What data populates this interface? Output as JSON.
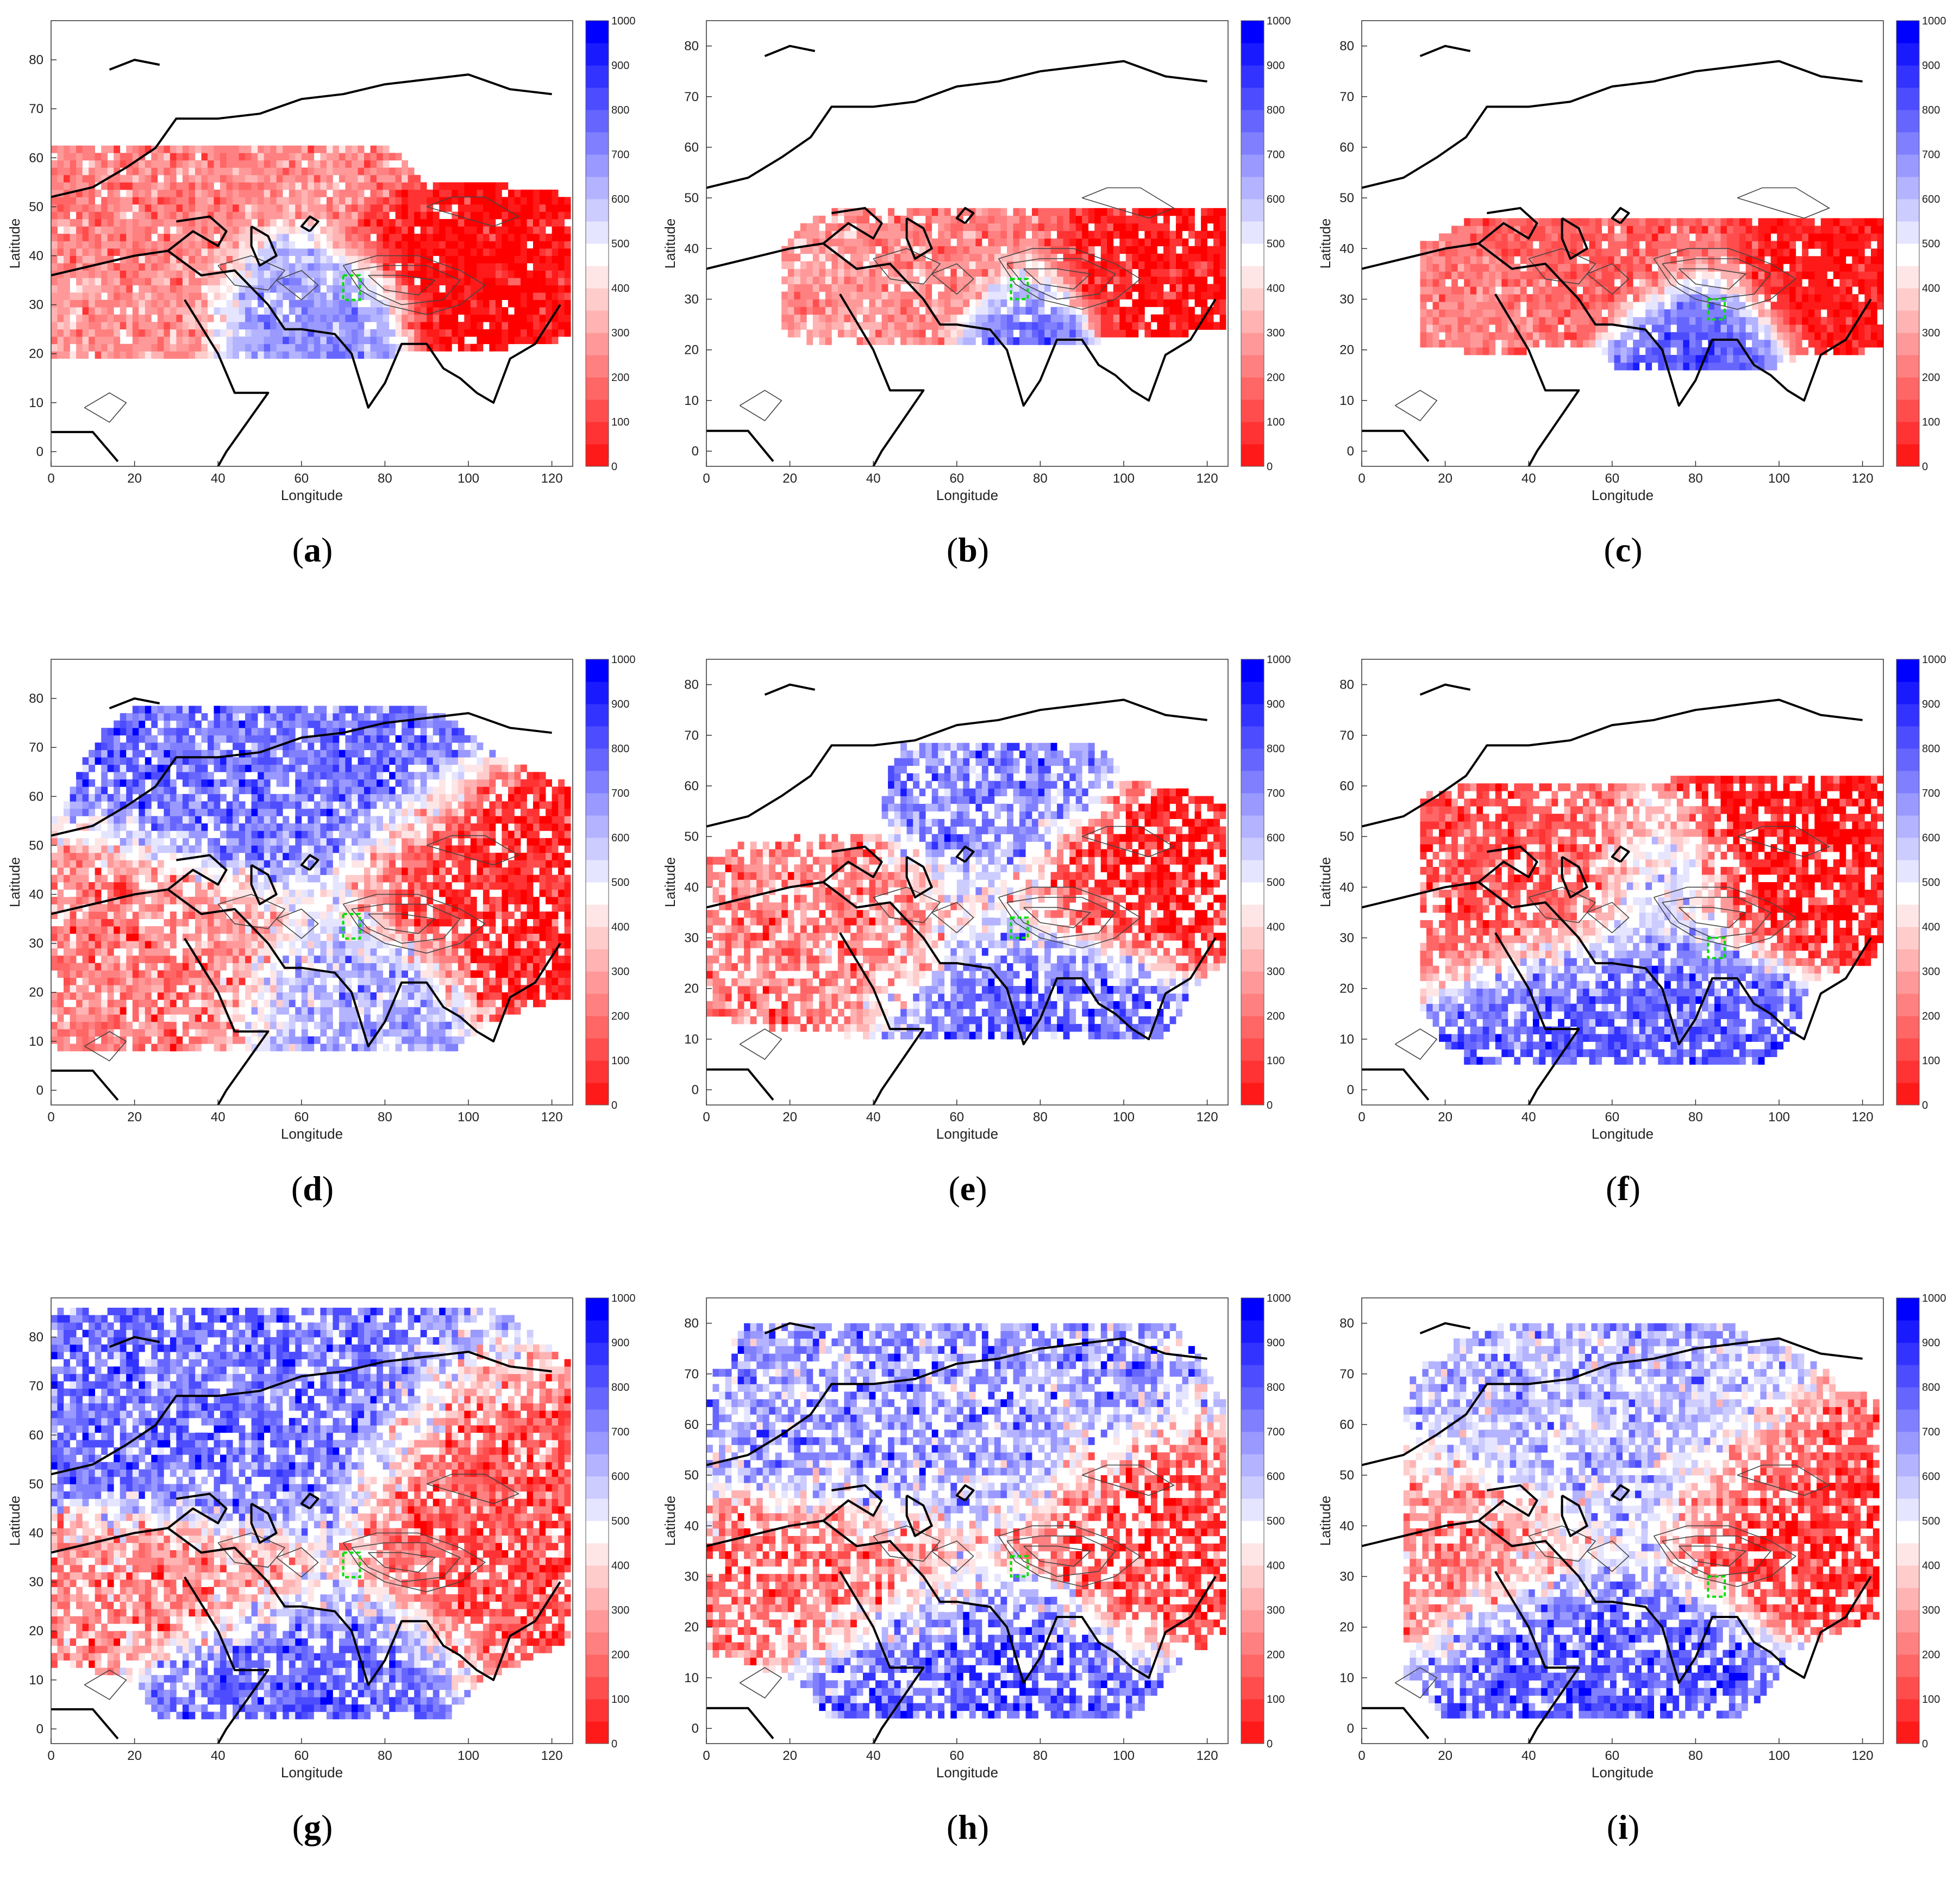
{
  "figure": {
    "axis_labels": {
      "x": "Longitude",
      "y": "Latitude"
    },
    "colors": {
      "low": "#ff0000",
      "mid": "#ffffff",
      "high": "#0000ff",
      "coastline": "#000000",
      "contour": "#444444",
      "box": "#00e000"
    }
  },
  "chart_data": [
    {
      "id": "a",
      "caption": "a",
      "type": "heatmap",
      "xlabel": "Longitude",
      "ylabel": "Latitude",
      "xlim": [
        0,
        125
      ],
      "ylim": [
        -3,
        88
      ],
      "xticks": [
        0,
        20,
        40,
        60,
        80,
        100,
        120
      ],
      "yticks": [
        0,
        10,
        20,
        30,
        40,
        50,
        60,
        70,
        80
      ],
      "colorbar": {
        "min": 0,
        "max": 1000,
        "ticks": [
          0,
          100,
          200,
          300,
          400,
          500,
          600,
          700,
          800,
          900,
          1000
        ]
      },
      "box": {
        "lon": [
          70,
          74
        ],
        "lat": [
          31,
          36
        ]
      },
      "features": [
        {
          "lon": 20,
          "lat": 45,
          "sx": 18,
          "sy": 8,
          "value": 250
        },
        {
          "lon": 10,
          "lat": 30,
          "sx": 14,
          "sy": 7,
          "value": 300
        },
        {
          "lon": 55,
          "lat": 32,
          "sx": 8,
          "sy": 7,
          "value": 700
        },
        {
          "lon": 72,
          "lat": 30,
          "sx": 6,
          "sy": 5,
          "value": 750
        },
        {
          "lon": 100,
          "lat": 37,
          "sx": 16,
          "sy": 6,
          "value": 20
        },
        {
          "lon": 40,
          "lat": 55,
          "sx": 16,
          "sy": 5,
          "value": 280
        }
      ],
      "extent": {
        "lon": [
          0,
          124
        ],
        "lat": [
          19,
          62
        ]
      },
      "noise": 0.18,
      "density": 0.95
    },
    {
      "id": "b",
      "caption": "b",
      "type": "heatmap",
      "xlabel": "Longitude",
      "ylabel": "Latitude",
      "xlim": [
        0,
        125
      ],
      "ylim": [
        -3,
        85
      ],
      "xticks": [
        0,
        20,
        40,
        60,
        80,
        100,
        120
      ],
      "yticks": [
        0,
        10,
        20,
        30,
        40,
        50,
        60,
        70,
        80
      ],
      "colorbar": {
        "min": 0,
        "max": 1000,
        "ticks": [
          0,
          100,
          200,
          300,
          400,
          500,
          600,
          700,
          800,
          900,
          1000
        ]
      },
      "box": {
        "lon": [
          73,
          77
        ],
        "lat": [
          30,
          34
        ]
      },
      "features": [
        {
          "lon": 60,
          "lat": 40,
          "sx": 12,
          "sy": 6,
          "value": 250
        },
        {
          "lon": 76,
          "lat": 26,
          "sx": 6,
          "sy": 6,
          "value": 780
        },
        {
          "lon": 105,
          "lat": 36,
          "sx": 14,
          "sy": 5,
          "value": 40
        },
        {
          "lon": 40,
          "lat": 32,
          "sx": 10,
          "sy": 5,
          "value": 300
        }
      ],
      "extent": {
        "lon": [
          18,
          124
        ],
        "lat": [
          21,
          48
        ]
      },
      "noise": 0.18,
      "density": 0.9
    },
    {
      "id": "c",
      "caption": "c",
      "type": "heatmap",
      "xlabel": "Longitude",
      "ylabel": "Latitude",
      "xlim": [
        0,
        125
      ],
      "ylim": [
        -3,
        85
      ],
      "xticks": [
        0,
        20,
        40,
        60,
        80,
        100,
        120
      ],
      "yticks": [
        0,
        10,
        20,
        30,
        40,
        50,
        60,
        70,
        80
      ],
      "colorbar": {
        "min": 0,
        "max": 1000,
        "ticks": [
          0,
          100,
          200,
          300,
          400,
          500,
          600,
          700,
          800,
          900,
          1000
        ]
      },
      "box": {
        "lon": [
          83,
          87
        ],
        "lat": [
          26,
          30
        ]
      },
      "features": [
        {
          "lon": 80,
          "lat": 24,
          "sx": 8,
          "sy": 6,
          "value": 820
        },
        {
          "lon": 60,
          "lat": 38,
          "sx": 14,
          "sy": 6,
          "value": 180
        },
        {
          "lon": 110,
          "lat": 35,
          "sx": 12,
          "sy": 6,
          "value": 40
        },
        {
          "lon": 30,
          "lat": 30,
          "sx": 12,
          "sy": 4,
          "value": 250
        }
      ],
      "extent": {
        "lon": [
          14,
          124
        ],
        "lat": [
          16,
          46
        ]
      },
      "noise": 0.15,
      "density": 0.95
    },
    {
      "id": "d",
      "caption": "d",
      "type": "heatmap",
      "xlabel": "Longitude",
      "ylabel": "Latitude",
      "xlim": [
        0,
        125
      ],
      "ylim": [
        -3,
        88
      ],
      "xticks": [
        0,
        20,
        40,
        60,
        80,
        100,
        120
      ],
      "yticks": [
        0,
        10,
        20,
        30,
        40,
        50,
        60,
        70,
        80
      ],
      "colorbar": {
        "min": 0,
        "max": 1000,
        "ticks": [
          0,
          100,
          200,
          300,
          400,
          500,
          600,
          700,
          800,
          900,
          1000
        ]
      },
      "box": {
        "lon": [
          70,
          74
        ],
        "lat": [
          31,
          36
        ]
      },
      "features": [
        {
          "lon": 55,
          "lat": 58,
          "sx": 18,
          "sy": 10,
          "value": 780
        },
        {
          "lon": 25,
          "lat": 30,
          "sx": 20,
          "sy": 9,
          "value": 250
        },
        {
          "lon": 100,
          "lat": 40,
          "sx": 16,
          "sy": 9,
          "value": 60
        },
        {
          "lon": 70,
          "lat": 22,
          "sx": 12,
          "sy": 8,
          "value": 700
        }
      ],
      "extent": {
        "lon": [
          0,
          124
        ],
        "lat": [
          8,
          78
        ]
      },
      "noise": 0.25,
      "density": 0.85
    },
    {
      "id": "e",
      "caption": "e",
      "type": "heatmap",
      "xlabel": "Longitude",
      "ylabel": "Latitude",
      "xlim": [
        0,
        125
      ],
      "ylim": [
        -3,
        85
      ],
      "xticks": [
        0,
        20,
        40,
        60,
        80,
        100,
        120
      ],
      "yticks": [
        0,
        10,
        20,
        30,
        40,
        50,
        60,
        70,
        80
      ],
      "colorbar": {
        "min": 0,
        "max": 1000,
        "ticks": [
          0,
          100,
          200,
          300,
          400,
          500,
          600,
          700,
          800,
          900,
          1000
        ]
      },
      "box": {
        "lon": [
          73,
          77
        ],
        "lat": [
          30,
          34
        ]
      },
      "features": [
        {
          "lon": 70,
          "lat": 55,
          "sx": 10,
          "sy": 9,
          "value": 750
        },
        {
          "lon": 75,
          "lat": 20,
          "sx": 14,
          "sy": 7,
          "value": 800
        },
        {
          "lon": 30,
          "lat": 30,
          "sx": 18,
          "sy": 7,
          "value": 250
        },
        {
          "lon": 100,
          "lat": 40,
          "sx": 14,
          "sy": 7,
          "value": 60
        }
      ],
      "extent": {
        "lon": [
          0,
          124
        ],
        "lat": [
          10,
          68
        ]
      },
      "noise": 0.28,
      "density": 0.75
    },
    {
      "id": "f",
      "caption": "f",
      "type": "heatmap",
      "xlabel": "Longitude",
      "ylabel": "Latitude",
      "xlim": [
        0,
        125
      ],
      "ylim": [
        -3,
        85
      ],
      "xticks": [
        0,
        20,
        40,
        60,
        80,
        100,
        120
      ],
      "yticks": [
        0,
        10,
        20,
        30,
        40,
        50,
        60,
        70,
        80
      ],
      "colorbar": {
        "min": 0,
        "max": 1000,
        "ticks": [
          0,
          100,
          200,
          300,
          400,
          500,
          600,
          700,
          800,
          900,
          1000
        ]
      },
      "box": {
        "lon": [
          83,
          87
        ],
        "lat": [
          26,
          30
        ]
      },
      "features": [
        {
          "lon": 60,
          "lat": 18,
          "sx": 16,
          "sy": 8,
          "value": 820
        },
        {
          "lon": 70,
          "lat": 38,
          "sx": 8,
          "sy": 7,
          "value": 650
        },
        {
          "lon": 40,
          "lat": 38,
          "sx": 18,
          "sy": 8,
          "value": 150
        },
        {
          "lon": 105,
          "lat": 45,
          "sx": 14,
          "sy": 8,
          "value": 50
        }
      ],
      "extent": {
        "lon": [
          14,
          124
        ],
        "lat": [
          5,
          62
        ]
      },
      "noise": 0.22,
      "density": 0.8
    },
    {
      "id": "g",
      "caption": "g",
      "type": "heatmap",
      "xlabel": "Longitude",
      "ylabel": "Latitude",
      "xlim": [
        0,
        125
      ],
      "ylim": [
        -3,
        88
      ],
      "xticks": [
        0,
        20,
        40,
        60,
        80,
        100,
        120
      ],
      "yticks": [
        0,
        10,
        20,
        30,
        40,
        50,
        60,
        70,
        80
      ],
      "colorbar": {
        "min": 0,
        "max": 1000,
        "ticks": [
          0,
          100,
          200,
          300,
          400,
          500,
          600,
          700,
          800,
          900,
          1000
        ]
      },
      "box": {
        "lon": [
          70,
          74
        ],
        "lat": [
          31,
          36
        ]
      },
      "features": [
        {
          "lon": 45,
          "lat": 65,
          "sx": 25,
          "sy": 14,
          "value": 780
        },
        {
          "lon": 25,
          "lat": 30,
          "sx": 20,
          "sy": 7,
          "value": 250
        },
        {
          "lon": 100,
          "lat": 45,
          "sx": 14,
          "sy": 12,
          "value": 150
        },
        {
          "lon": 60,
          "lat": 12,
          "sx": 14,
          "sy": 8,
          "value": 800
        }
      ],
      "extent": {
        "lon": [
          0,
          124
        ],
        "lat": [
          2,
          86
        ]
      },
      "noise": 0.3,
      "density": 0.85
    },
    {
      "id": "h",
      "caption": "h",
      "type": "heatmap",
      "xlabel": "Longitude",
      "ylabel": "Latitude",
      "xlim": [
        0,
        125
      ],
      "ylim": [
        -3,
        85
      ],
      "xticks": [
        0,
        20,
        40,
        60,
        80,
        100,
        120
      ],
      "yticks": [
        0,
        10,
        20,
        30,
        40,
        50,
        60,
        70,
        80
      ],
      "colorbar": {
        "min": 0,
        "max": 1000,
        "ticks": [
          0,
          100,
          200,
          300,
          400,
          500,
          600,
          700,
          800,
          900,
          1000
        ]
      },
      "box": {
        "lon": [
          73,
          77
        ],
        "lat": [
          30,
          34
        ]
      },
      "features": [
        {
          "lon": 60,
          "lat": 60,
          "sx": 22,
          "sy": 12,
          "value": 700
        },
        {
          "lon": 65,
          "lat": 15,
          "sx": 16,
          "sy": 8,
          "value": 820
        },
        {
          "lon": 30,
          "lat": 30,
          "sx": 18,
          "sy": 7,
          "value": 200
        },
        {
          "lon": 100,
          "lat": 38,
          "sx": 14,
          "sy": 9,
          "value": 100
        }
      ],
      "extent": {
        "lon": [
          0,
          124
        ],
        "lat": [
          2,
          80
        ]
      },
      "noise": 0.32,
      "density": 0.72
    },
    {
      "id": "i",
      "caption": "i",
      "type": "heatmap",
      "xlabel": "Longitude",
      "ylabel": "Latitude",
      "xlim": [
        0,
        125
      ],
      "ylim": [
        -3,
        85
      ],
      "xticks": [
        0,
        20,
        40,
        60,
        80,
        100,
        120
      ],
      "yticks": [
        0,
        10,
        20,
        30,
        40,
        50,
        60,
        70,
        80
      ],
      "colorbar": {
        "min": 0,
        "max": 1000,
        "ticks": [
          0,
          100,
          200,
          300,
          400,
          500,
          600,
          700,
          800,
          900,
          1000
        ]
      },
      "box": {
        "lon": [
          83,
          87
        ],
        "lat": [
          26,
          30
        ]
      },
      "features": [
        {
          "lon": 55,
          "lat": 15,
          "sx": 16,
          "sy": 8,
          "value": 820
        },
        {
          "lon": 60,
          "lat": 55,
          "sx": 20,
          "sy": 10,
          "value": 650
        },
        {
          "lon": 20,
          "lat": 35,
          "sx": 18,
          "sy": 8,
          "value": 250
        },
        {
          "lon": 100,
          "lat": 42,
          "sx": 14,
          "sy": 9,
          "value": 100
        }
      ],
      "extent": {
        "lon": [
          10,
          124
        ],
        "lat": [
          2,
          80
        ]
      },
      "noise": 0.28,
      "density": 0.78
    }
  ]
}
